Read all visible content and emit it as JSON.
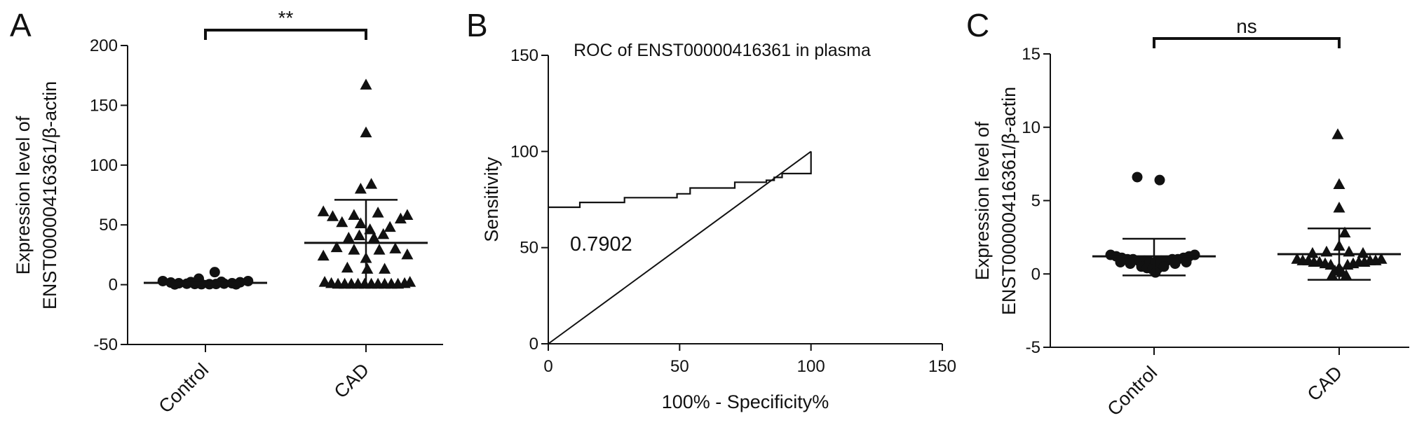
{
  "chart_data": [
    {
      "panel": "A",
      "type": "scatter",
      "ylabel": [
        "Expression level of",
        "ENST00000416361/β-actin"
      ],
      "categories": [
        "Control",
        "CAD"
      ],
      "ylim": [
        -50,
        200
      ],
      "yticks": [
        -50,
        0,
        50,
        100,
        150,
        200
      ],
      "significance": "**",
      "series": [
        {
          "marker": "circle",
          "mean": 1.5,
          "sd_upper": 3.2,
          "sd_lower": 0,
          "points": [
            {
              "x": -0.32,
              "y": 3.0
            },
            {
              "x": -0.26,
              "y": 1.8
            },
            {
              "x": -0.2,
              "y": 1.2
            },
            {
              "x": -0.14,
              "y": 0.8
            },
            {
              "x": -0.08,
              "y": 0.6
            },
            {
              "x": -0.03,
              "y": 0.4
            },
            {
              "x": 0.03,
              "y": 0.4
            },
            {
              "x": 0.08,
              "y": 0.6
            },
            {
              "x": 0.14,
              "y": 0.9
            },
            {
              "x": 0.2,
              "y": 1.2
            },
            {
              "x": 0.26,
              "y": 2.0
            },
            {
              "x": 0.32,
              "y": 3.0
            },
            {
              "x": -0.23,
              "y": 0.2
            },
            {
              "x": 0.23,
              "y": 0.3
            },
            {
              "x": -0.05,
              "y": 5.0
            },
            {
              "x": 0.07,
              "y": 10.5
            },
            {
              "x": -0.11,
              "y": 2.2
            },
            {
              "x": 0.12,
              "y": 2.4
            }
          ]
        },
        {
          "marker": "triangle",
          "mean": 35,
          "sd_upper": 71,
          "sd_lower": 0,
          "points": [
            {
              "x": 0.0,
              "y": 167
            },
            {
              "x": 0.0,
              "y": 127
            },
            {
              "x": 0.04,
              "y": 84
            },
            {
              "x": -0.04,
              "y": 80
            },
            {
              "x": -0.32,
              "y": 61
            },
            {
              "x": -0.25,
              "y": 57
            },
            {
              "x": -0.09,
              "y": 58
            },
            {
              "x": 0.09,
              "y": 60
            },
            {
              "x": 0.26,
              "y": 55
            },
            {
              "x": 0.31,
              "y": 58
            },
            {
              "x": -0.18,
              "y": 52
            },
            {
              "x": -0.04,
              "y": 51
            },
            {
              "x": 0.03,
              "y": 46
            },
            {
              "x": 0.18,
              "y": 48
            },
            {
              "x": -0.13,
              "y": 39
            },
            {
              "x": -0.05,
              "y": 41
            },
            {
              "x": 0.06,
              "y": 39
            },
            {
              "x": 0.13,
              "y": 42
            },
            {
              "x": -0.22,
              "y": 31
            },
            {
              "x": -0.09,
              "y": 29
            },
            {
              "x": 0.1,
              "y": 29
            },
            {
              "x": 0.22,
              "y": 30
            },
            {
              "x": -0.32,
              "y": 24
            },
            {
              "x": 0.0,
              "y": 22
            },
            {
              "x": 0.31,
              "y": 25
            },
            {
              "x": -0.14,
              "y": 14
            },
            {
              "x": 0.01,
              "y": 13
            },
            {
              "x": 0.14,
              "y": 13
            },
            {
              "x": -0.31,
              "y": 2
            },
            {
              "x": -0.26,
              "y": 1
            },
            {
              "x": -0.21,
              "y": 0.5
            },
            {
              "x": -0.16,
              "y": 0.5
            },
            {
              "x": -0.11,
              "y": 0.5
            },
            {
              "x": -0.06,
              "y": 0.5
            },
            {
              "x": -0.01,
              "y": 0.5
            },
            {
              "x": 0.04,
              "y": 0.5
            },
            {
              "x": 0.09,
              "y": 0.5
            },
            {
              "x": 0.14,
              "y": 0.5
            },
            {
              "x": 0.19,
              "y": 0.5
            },
            {
              "x": 0.24,
              "y": 0.5
            },
            {
              "x": 0.29,
              "y": 1
            },
            {
              "x": 0.33,
              "y": 2
            }
          ]
        }
      ]
    },
    {
      "panel": "B",
      "type": "line",
      "title": "ROC of ENST00000416361 in plasma",
      "xlabel": "100% - Specificity%",
      "ylabel": "Sensitivity",
      "xlim": [
        0,
        150
      ],
      "ylim": [
        0,
        150
      ],
      "xticks": [
        0,
        50,
        100,
        150
      ],
      "yticks": [
        0,
        50,
        100,
        150
      ],
      "annotation": "0.7902",
      "roc_curve": [
        [
          0,
          71
        ],
        [
          12,
          71
        ],
        [
          12,
          73.5
        ],
        [
          29,
          73.5
        ],
        [
          29,
          76
        ],
        [
          49,
          76
        ],
        [
          49,
          78
        ],
        [
          54,
          78
        ],
        [
          54,
          81
        ],
        [
          71,
          81
        ],
        [
          71,
          84
        ],
        [
          83,
          84
        ],
        [
          83,
          85
        ],
        [
          86,
          85
        ],
        [
          86,
          86.5
        ],
        [
          89,
          86.5
        ],
        [
          89,
          88.5
        ],
        [
          100,
          88.5
        ],
        [
          100,
          100
        ]
      ],
      "reference_line": [
        [
          0,
          0
        ],
        [
          100,
          100
        ]
      ]
    },
    {
      "panel": "C",
      "type": "scatter",
      "ylabel": [
        "Expression level of",
        "ENST00000416361/β-actin"
      ],
      "categories": [
        "Control",
        "CAD"
      ],
      "ylim": [
        -5,
        15
      ],
      "yticks": [
        -5,
        0,
        5,
        10,
        15
      ],
      "significance": "ns",
      "series": [
        {
          "marker": "circle",
          "mean": 1.2,
          "sd_upper": 2.4,
          "sd_lower": -0.1,
          "points": [
            {
              "x": -0.12,
              "y": 6.6
            },
            {
              "x": 0.04,
              "y": 6.4
            },
            {
              "x": -0.31,
              "y": 1.3
            },
            {
              "x": -0.27,
              "y": 1.2
            },
            {
              "x": -0.23,
              "y": 1.1
            },
            {
              "x": -0.19,
              "y": 1.0
            },
            {
              "x": -0.15,
              "y": 1.0
            },
            {
              "x": -0.11,
              "y": 0.9
            },
            {
              "x": -0.07,
              "y": 0.9
            },
            {
              "x": -0.03,
              "y": 0.8
            },
            {
              "x": 0.01,
              "y": 0.8
            },
            {
              "x": 0.05,
              "y": 0.9
            },
            {
              "x": 0.09,
              "y": 0.9
            },
            {
              "x": 0.13,
              "y": 1.0
            },
            {
              "x": 0.17,
              "y": 1.0
            },
            {
              "x": 0.21,
              "y": 1.1
            },
            {
              "x": 0.25,
              "y": 1.2
            },
            {
              "x": 0.29,
              "y": 1.3
            },
            {
              "x": -0.09,
              "y": 0.5
            },
            {
              "x": -0.05,
              "y": 0.4
            },
            {
              "x": -0.01,
              "y": 0.3
            },
            {
              "x": 0.03,
              "y": 0.4
            },
            {
              "x": 0.07,
              "y": 0.5
            },
            {
              "x": -0.17,
              "y": 0.7
            },
            {
              "x": 0.15,
              "y": 0.7
            },
            {
              "x": -0.24,
              "y": 0.8
            },
            {
              "x": 0.23,
              "y": 0.8
            },
            {
              "x": 0.01,
              "y": 0.1
            }
          ]
        },
        {
          "marker": "triangle",
          "mean": 1.35,
          "sd_upper": 3.1,
          "sd_lower": -0.4,
          "points": [
            {
              "x": -0.01,
              "y": 9.5
            },
            {
              "x": 0.0,
              "y": 6.1
            },
            {
              "x": 0.0,
              "y": 4.5
            },
            {
              "x": 0.04,
              "y": 2.8
            },
            {
              "x": 0.0,
              "y": 1.9
            },
            {
              "x": -0.19,
              "y": 1.4
            },
            {
              "x": -0.09,
              "y": 1.5
            },
            {
              "x": 0.07,
              "y": 1.5
            },
            {
              "x": 0.17,
              "y": 1.4
            },
            {
              "x": -0.3,
              "y": 1.0
            },
            {
              "x": -0.26,
              "y": 0.9
            },
            {
              "x": -0.22,
              "y": 0.9
            },
            {
              "x": -0.18,
              "y": 0.8
            },
            {
              "x": -0.14,
              "y": 0.8
            },
            {
              "x": -0.1,
              "y": 0.7
            },
            {
              "x": -0.06,
              "y": 0.6
            },
            {
              "x": 0.06,
              "y": 0.6
            },
            {
              "x": 0.1,
              "y": 0.7
            },
            {
              "x": 0.14,
              "y": 0.8
            },
            {
              "x": 0.18,
              "y": 0.8
            },
            {
              "x": 0.22,
              "y": 0.9
            },
            {
              "x": 0.26,
              "y": 0.9
            },
            {
              "x": 0.3,
              "y": 1.0
            },
            {
              "x": -0.03,
              "y": 0.2
            },
            {
              "x": 0.02,
              "y": 0.1
            },
            {
              "x": -0.05,
              "y": -0.1
            },
            {
              "x": 0.05,
              "y": -0.1
            },
            {
              "x": 0.0,
              "y": 0.4
            }
          ]
        }
      ]
    }
  ]
}
